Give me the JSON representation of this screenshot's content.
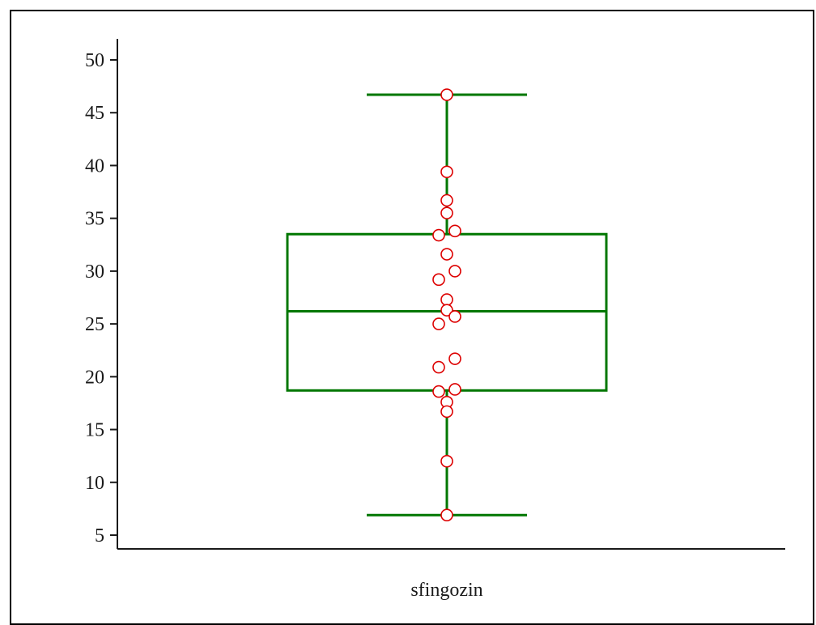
{
  "chart_data": {
    "type": "box",
    "title": "",
    "xlabel": "",
    "ylabel": "",
    "categories": [
      "sfingozin"
    ],
    "ylim": [
      4,
      52
    ],
    "yticks": [
      5,
      10,
      15,
      20,
      25,
      30,
      35,
      40,
      45,
      50
    ],
    "grid": false,
    "legend": "none",
    "box": {
      "whisker_low": 6.9,
      "q1": 18.7,
      "median": 26.2,
      "q3": 33.5,
      "whisker_high": 46.7
    },
    "points": [
      {
        "y": 46.7,
        "jitter": 0
      },
      {
        "y": 39.4,
        "jitter": 0
      },
      {
        "y": 36.7,
        "jitter": 0
      },
      {
        "y": 35.5,
        "jitter": 0
      },
      {
        "y": 33.8,
        "jitter": 1
      },
      {
        "y": 33.4,
        "jitter": -1
      },
      {
        "y": 31.6,
        "jitter": 0
      },
      {
        "y": 30.0,
        "jitter": 1
      },
      {
        "y": 29.2,
        "jitter": -1
      },
      {
        "y": 27.3,
        "jitter": 0
      },
      {
        "y": 26.3,
        "jitter": 0
      },
      {
        "y": 25.7,
        "jitter": 1
      },
      {
        "y": 25.0,
        "jitter": -1
      },
      {
        "y": 21.7,
        "jitter": 1
      },
      {
        "y": 20.9,
        "jitter": -1
      },
      {
        "y": 18.8,
        "jitter": 1
      },
      {
        "y": 18.6,
        "jitter": -1
      },
      {
        "y": 17.6,
        "jitter": 0
      },
      {
        "y": 16.7,
        "jitter": 0
      },
      {
        "y": 12.0,
        "jitter": 0
      },
      {
        "y": 6.9,
        "jitter": 0
      }
    ],
    "colors": {
      "box": "#007700",
      "points": "#dd0000",
      "axis": "#1a1a1a"
    }
  }
}
